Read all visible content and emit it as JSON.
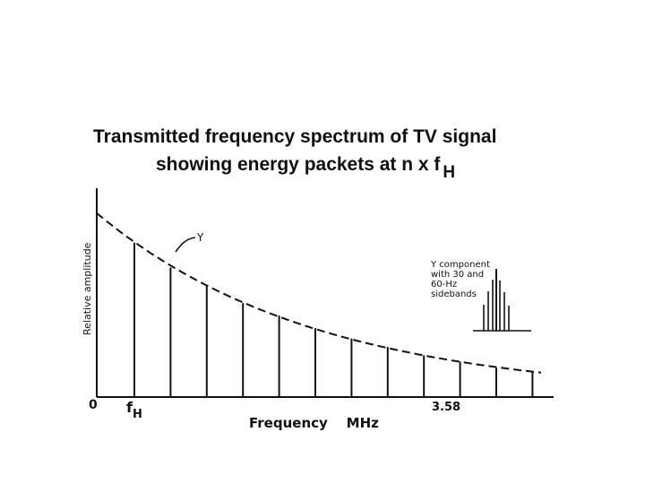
{
  "chart_data": {
    "type": "bar",
    "title_line1": "Transmitted frequency spectrum of TV signal",
    "title_line2_main": "showing energy packets at n x f",
    "title_line2_sub": "H",
    "xlabel": "Frequency    MHz",
    "ylabel": "Relative amplitude",
    "x_tick_labels": [
      {
        "main": "0",
        "sub": ""
      },
      {
        "main": "f",
        "sub": "H"
      },
      {
        "main": "3.58",
        "sub": ""
      }
    ],
    "curve_label": "Y",
    "inset_text": [
      "Y component",
      "with 30 and",
      "60-Hz",
      "sidebands"
    ],
    "harmonics": [
      1,
      2,
      3,
      4,
      5,
      6,
      7,
      8,
      9,
      10,
      11,
      12
    ],
    "relative_amplitude": [
      0.74,
      0.62,
      0.53,
      0.45,
      0.39,
      0.33,
      0.28,
      0.24,
      0.2,
      0.17,
      0.14,
      0.12
    ],
    "envelope": "dashed exponential decay",
    "colors": {
      "ink": "#111111",
      "background": "#ffffff"
    }
  }
}
